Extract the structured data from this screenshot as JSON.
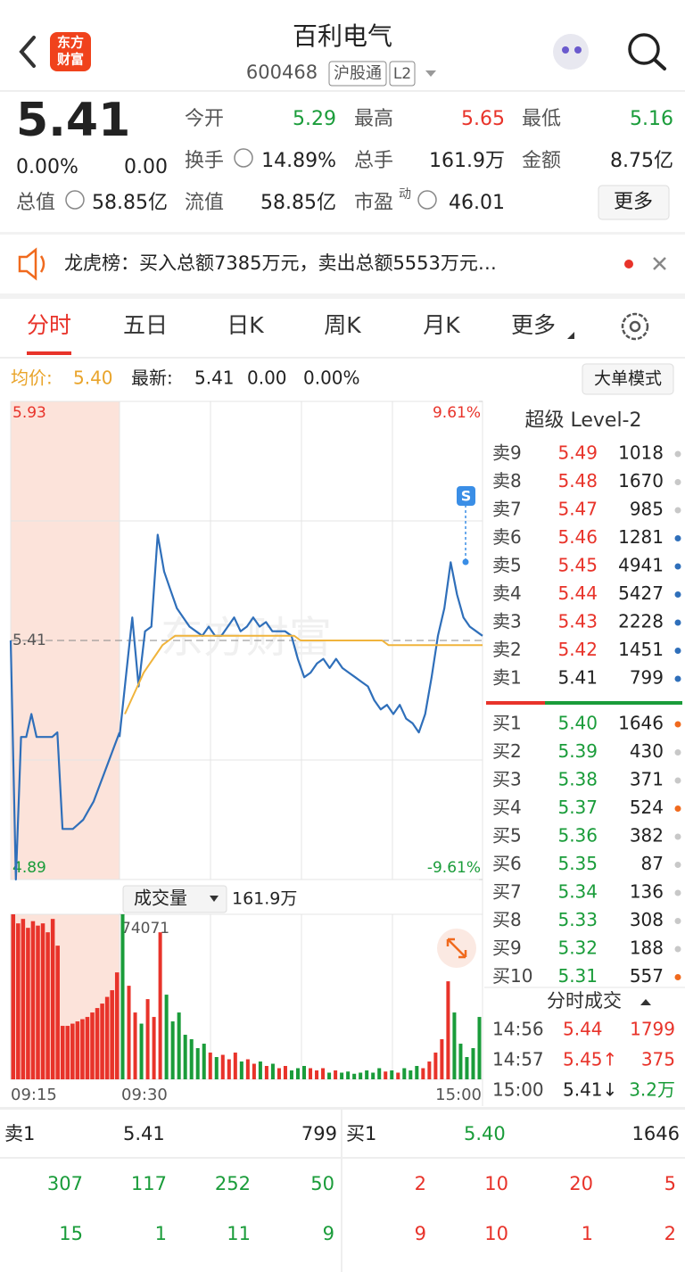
{
  "header": {
    "title": "百利电气",
    "code": "600468",
    "badge": "沪股通",
    "level": "L2",
    "logo": [
      "东方",
      "财富"
    ]
  },
  "quote": {
    "price": "5.41",
    "change_pct": "0.00%",
    "change": "0.00",
    "total_value": {
      "label": "总值",
      "value": "58.85亿"
    },
    "stats": [
      {
        "label": "今开",
        "value": "5.29",
        "color": "#1a9c3a"
      },
      {
        "label": "最高",
        "value": "5.65",
        "color": "#e8332a"
      },
      {
        "label": "最低",
        "value": "5.16",
        "color": "#1a9c3a"
      },
      {
        "label": "换手",
        "value": "14.89%",
        "color": "#222"
      },
      {
        "label": "总手",
        "value": "161.9万",
        "color": "#222"
      },
      {
        "label": "金额",
        "value": "8.75亿",
        "color": "#222"
      },
      {
        "label": "流值",
        "value": "58.85亿",
        "color": "#222"
      },
      {
        "label": "市盈",
        "sup": "动",
        "value": "46.01",
        "color": "#222"
      }
    ],
    "more_button": "更多"
  },
  "notice": {
    "text": "龙虎榜：买入总额7385万元，卖出总额5553万元…"
  },
  "tabs": [
    "分时",
    "五日",
    "日K",
    "周K",
    "月K",
    "更多"
  ],
  "info": {
    "avg_label": "均价:",
    "avg": "5.40",
    "latest_label": "最新:",
    "latest": "5.41",
    "change": "0.00",
    "change_pct": "0.00%",
    "button": "大单模式"
  },
  "chart_data": [
    {
      "type": "line",
      "watermark": "东方财富",
      "marker": "S",
      "ylim": [
        4.89,
        5.93
      ],
      "yticks": [
        4.89,
        5.41,
        5.93
      ],
      "y2lim": [
        -9.61,
        9.61
      ],
      "y2ticks": [
        {
          "value": -9.61,
          "label": "-9.61%"
        },
        {
          "value": 9.61,
          "label": "9.61%"
        }
      ],
      "series": [
        {
          "color": "#2f6fba",
          "values": [
            5.41,
            4.89,
            5.2,
            5.2,
            5.25,
            5.2,
            5.2,
            5.2,
            5.2,
            5.21,
            5.0,
            5.0,
            5.0,
            5.01,
            5.02,
            5.04,
            5.06,
            5.09,
            5.12,
            5.15,
            5.18,
            5.21
          ]
        },
        {
          "color": "#2f6fba",
          "values": [
            5.2,
            5.33,
            5.46,
            5.31,
            5.43,
            5.44,
            5.64,
            5.56,
            5.52,
            5.48,
            5.46,
            5.44,
            5.43,
            5.42,
            5.44,
            5.42,
            5.42,
            5.44,
            5.46,
            5.43,
            5.44,
            5.46,
            5.44,
            5.45,
            5.43,
            5.43,
            5.43,
            5.42,
            5.37,
            5.33,
            5.34,
            5.36,
            5.37,
            5.35,
            5.37,
            5.35,
            5.34,
            5.33,
            5.32,
            5.31,
            5.28,
            5.26,
            5.27,
            5.25,
            5.27,
            5.24,
            5.23,
            5.21,
            5.25,
            5.33,
            5.42,
            5.48,
            5.58,
            5.51,
            5.46,
            5.44,
            5.43,
            5.42
          ]
        },
        {
          "color": "#f0b43c",
          "values": [
            5.25,
            5.28,
            5.31,
            5.34,
            5.36,
            5.38,
            5.4,
            5.41,
            5.42,
            5.42,
            5.42,
            5.42,
            5.42,
            5.42,
            5.42,
            5.42,
            5.42,
            5.42,
            5.42,
            5.42,
            5.42,
            5.42,
            5.42,
            5.42,
            5.42,
            5.42,
            5.42,
            5.42,
            5.41,
            5.41,
            5.41,
            5.41,
            5.41,
            5.41,
            5.41,
            5.41,
            5.41,
            5.41,
            5.41,
            5.41,
            5.41,
            5.41,
            5.4,
            5.4,
            5.4,
            5.4,
            5.4,
            5.4,
            5.4,
            5.4,
            5.4,
            5.4,
            5.4,
            5.4,
            5.4,
            5.4,
            5.4,
            5.4
          ]
        }
      ]
    },
    {
      "type": "bar",
      "title": "成交量",
      "total": "161.9万",
      "ylim": [
        0,
        74071
      ],
      "yticks": [
        74071
      ],
      "time_labels": [
        "09:15",
        "09:30",
        "15:00"
      ],
      "up_color": "#e8332a",
      "down_color": "#1a9c3a",
      "series": [
        {
          "color": "#e8332a",
          "values": [
            74071,
            70000,
            72000,
            68000,
            71000,
            69000,
            70000,
            66000,
            72000,
            60000,
            24000,
            24000,
            25000,
            26000,
            27000,
            28000,
            30000,
            32000,
            34000,
            37000,
            40000,
            48000
          ]
        },
        {
          "values": [
            74071,
            42000,
            30000,
            25000,
            36000,
            28000,
            66000,
            38000,
            26000,
            30000,
            20000,
            18000,
            14000,
            16000,
            12000,
            10000,
            11000,
            9000,
            12000,
            8000,
            9000,
            7000,
            8000,
            6000,
            7000,
            5000,
            6000,
            4000,
            5000,
            6000,
            5000,
            4000,
            5000,
            3000,
            4000,
            3000,
            3500,
            2500,
            3000,
            4000,
            3000,
            5000,
            3500,
            4000,
            3000,
            5000,
            4000,
            6000,
            5000,
            8000,
            12000,
            18000,
            44000,
            30000,
            16000,
            10000,
            14000,
            28000
          ]
        }
      ]
    }
  ],
  "level2": {
    "title": "超级 Level-2",
    "asks": [
      {
        "label": "卖9",
        "price": "5.49",
        "volume": "1018",
        "dot": "#c8c8c8"
      },
      {
        "label": "卖8",
        "price": "5.48",
        "volume": "1670",
        "dot": "#c8c8c8"
      },
      {
        "label": "卖7",
        "price": "5.47",
        "volume": "985",
        "dot": "#c8c8c8"
      },
      {
        "label": "卖6",
        "price": "5.46",
        "volume": "1281",
        "dot": "#2f6fba"
      },
      {
        "label": "卖5",
        "price": "5.45",
        "volume": "4941",
        "dot": "#2f6fba"
      },
      {
        "label": "卖4",
        "price": "5.44",
        "volume": "5427",
        "dot": "#2f6fba"
      },
      {
        "label": "卖3",
        "price": "5.43",
        "volume": "2228",
        "dot": "#2f6fba"
      },
      {
        "label": "卖2",
        "price": "5.42",
        "volume": "1451",
        "dot": "#2f6fba"
      },
      {
        "label": "卖1",
        "price": "5.41",
        "volume": "799",
        "dot": "#2f6fba",
        "color": "#222"
      }
    ],
    "bids": [
      {
        "label": "买1",
        "price": "5.40",
        "volume": "1646",
        "dot": "#f06a1e"
      },
      {
        "label": "买2",
        "price": "5.39",
        "volume": "430",
        "dot": "#c8c8c8"
      },
      {
        "label": "买3",
        "price": "5.38",
        "volume": "371",
        "dot": "#c8c8c8"
      },
      {
        "label": "买4",
        "price": "5.37",
        "volume": "524",
        "dot": "#f06a1e"
      },
      {
        "label": "买5",
        "price": "5.36",
        "volume": "382",
        "dot": "#c8c8c8"
      },
      {
        "label": "买6",
        "price": "5.35",
        "volume": "87",
        "dot": "#c8c8c8"
      },
      {
        "label": "买7",
        "price": "5.34",
        "volume": "136",
        "dot": "#c8c8c8"
      },
      {
        "label": "买8",
        "price": "5.33",
        "volume": "308",
        "dot": "#c8c8c8"
      },
      {
        "label": "买9",
        "price": "5.32",
        "volume": "188",
        "dot": "#c8c8c8"
      },
      {
        "label": "买10",
        "price": "5.31",
        "volume": "557",
        "dot": "#f06a1e"
      }
    ]
  },
  "trades": {
    "title": "分时成交",
    "rows": [
      {
        "time": "14:56",
        "price": "5.44",
        "volume": "1799",
        "color": "#e8332a",
        "vcolor": "#e8332a"
      },
      {
        "time": "14:57",
        "price": "5.45↑",
        "volume": "375",
        "color": "#e8332a",
        "vcolor": "#e8332a"
      },
      {
        "time": "15:00",
        "price": "5.41↓",
        "volume": "3.2万",
        "color": "#222",
        "vcolor": "#1a9c3a"
      }
    ]
  },
  "bottom": {
    "ask1": {
      "label": "卖1",
      "price": "5.41",
      "volume": "799"
    },
    "bid1": {
      "label": "买1",
      "price": "5.40",
      "volume": "1646"
    },
    "ask_orders": [
      [
        "307",
        "117",
        "252",
        "50"
      ],
      [
        "15",
        "1",
        "11",
        "9"
      ]
    ],
    "bid_orders": [
      [
        "2",
        "10",
        "20",
        "5"
      ],
      [
        "9",
        "10",
        "1",
        "2"
      ]
    ]
  }
}
